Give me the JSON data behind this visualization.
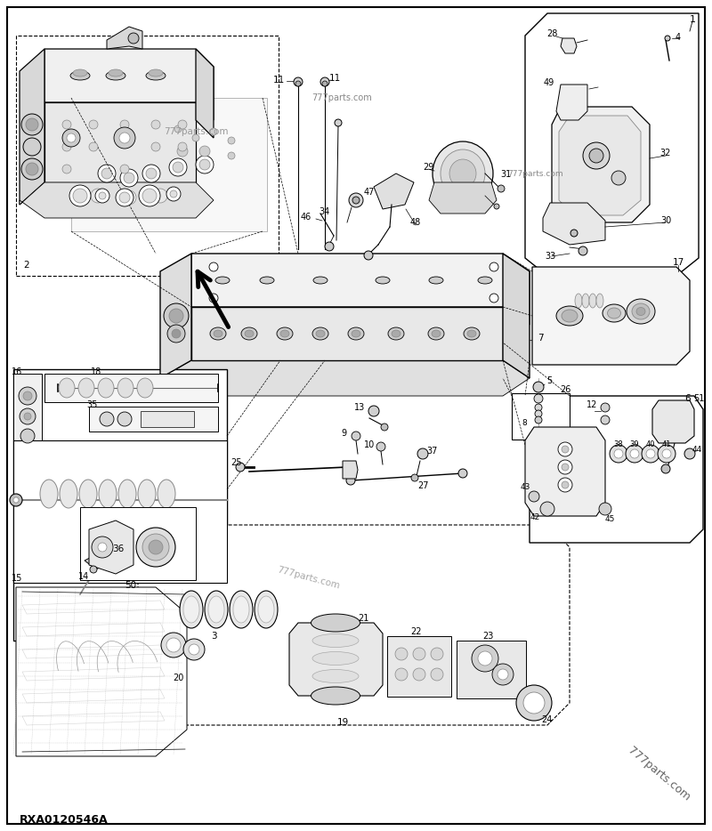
{
  "bg_color": "#ffffff",
  "border_color": "#000000",
  "fig_width": 8.0,
  "fig_height": 9.34,
  "dpi": 100,
  "bottom_label": "RXA0120546A",
  "corner_watermark": "777parts.com",
  "watermark1": "777parts.com",
  "watermark2": "777parts.com",
  "watermark3": "777parts.com"
}
